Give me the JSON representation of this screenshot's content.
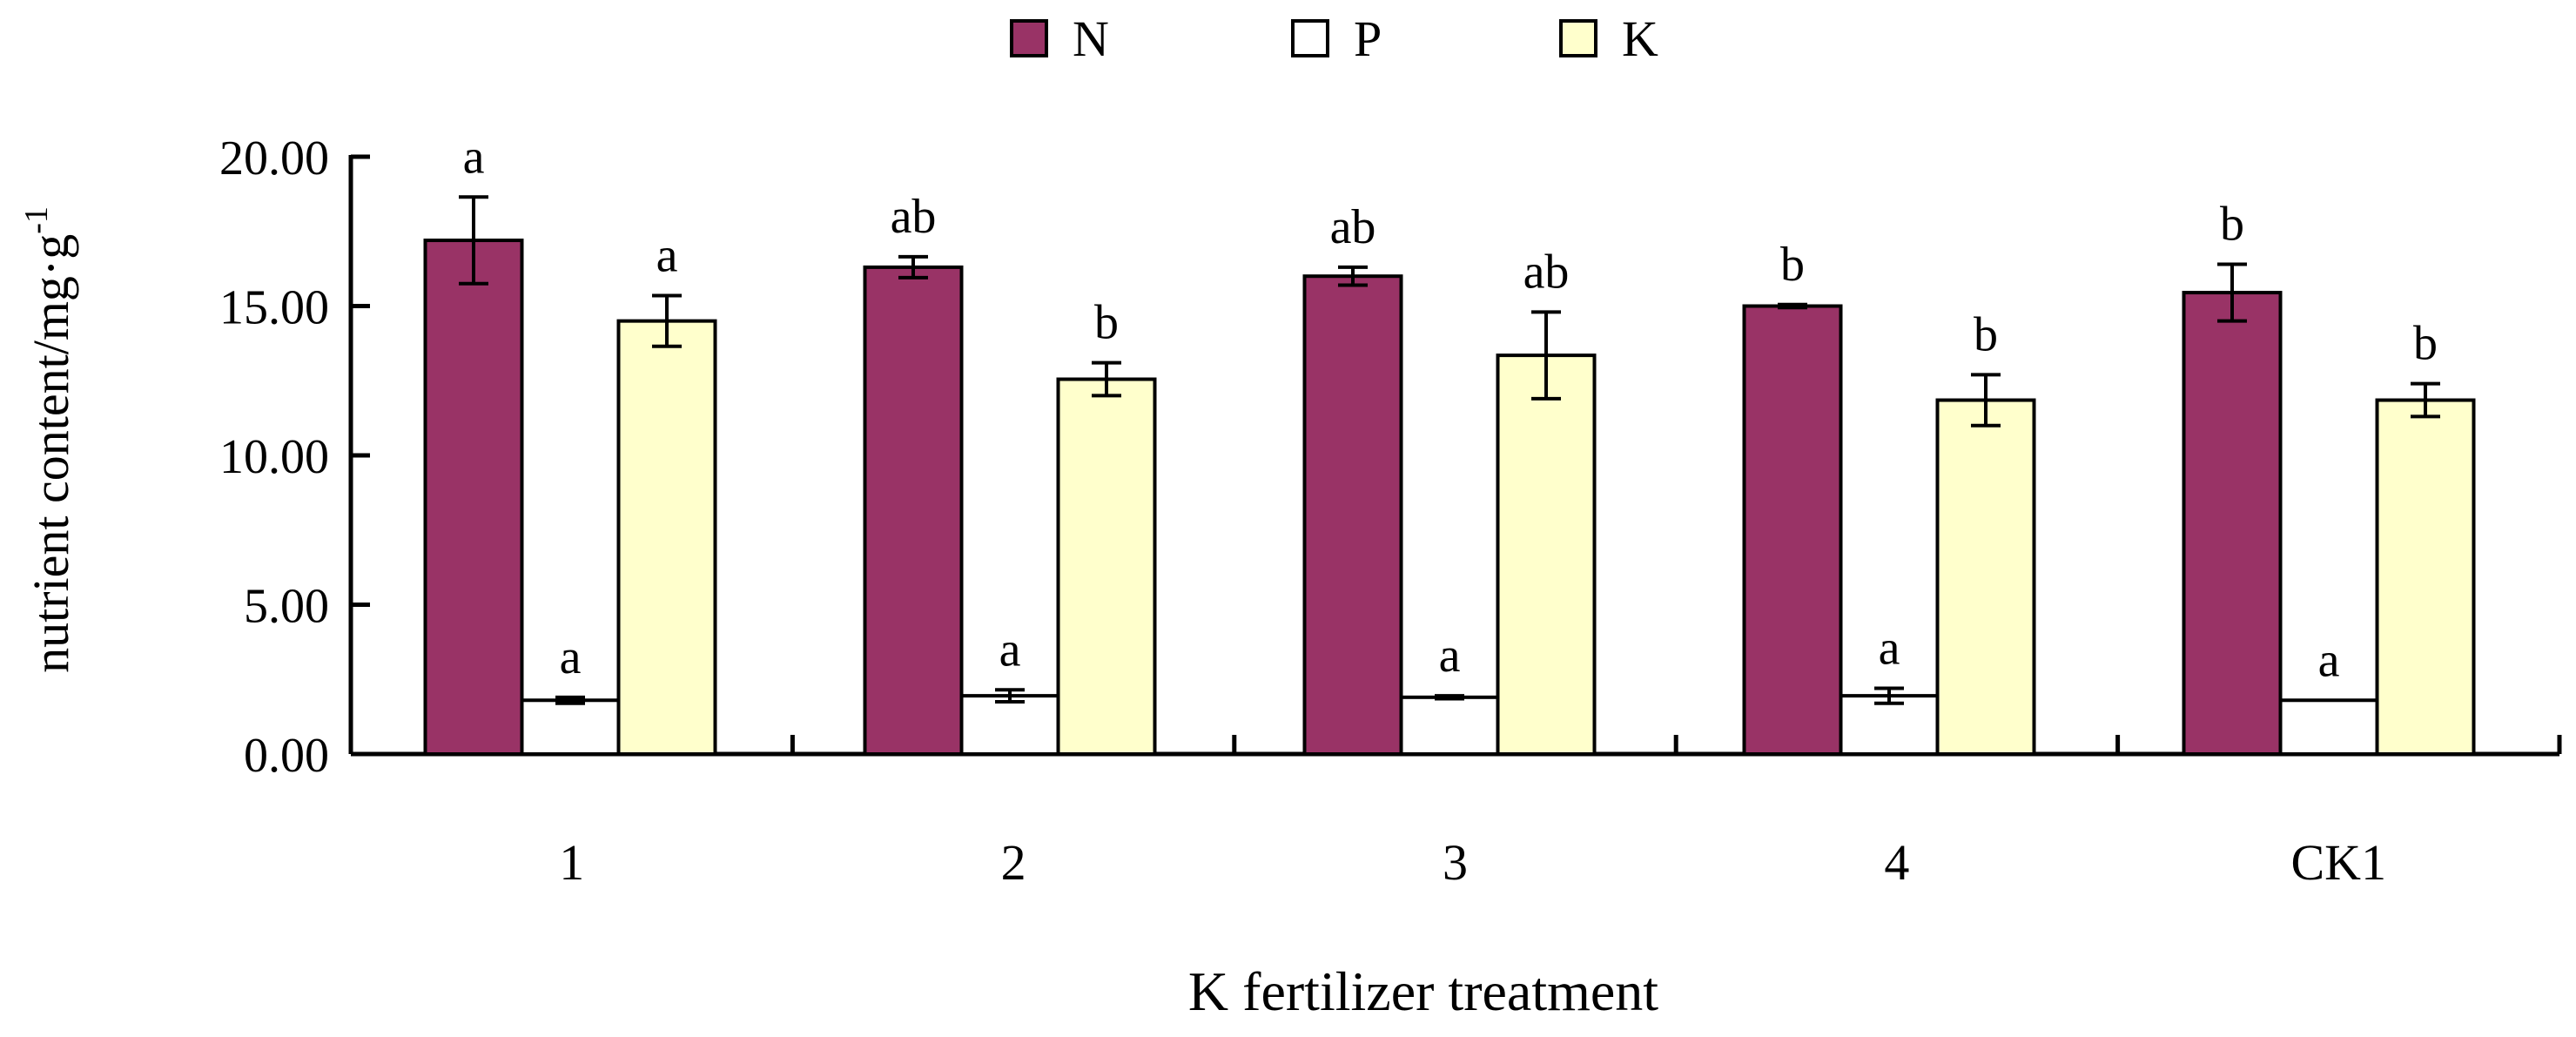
{
  "chart_data": {
    "type": "bar",
    "title": "",
    "xlabel": "K fertilizer treatment",
    "ylabel": "nutrient content/mg·g",
    "ylabel_sup": "-1",
    "ylim": [
      0,
      20
    ],
    "yticks": [
      "0.00",
      "5.00",
      "10.00",
      "15.00",
      "20.00"
    ],
    "categories": [
      "1",
      "2",
      "3",
      "4",
      "CK1"
    ],
    "legend_position": "top-center",
    "grid": false,
    "series": [
      {
        "name": "N",
        "color": "#993366",
        "values": [
          17.2,
          16.3,
          16.0,
          15.0,
          15.45
        ],
        "errors": [
          1.45,
          0.35,
          0.3,
          0.05,
          0.95
        ],
        "letters": [
          "a",
          "ab",
          "ab",
          "b",
          "b"
        ]
      },
      {
        "name": "P",
        "color": "#ffffff",
        "values": [
          1.8,
          1.95,
          1.9,
          1.95,
          1.8
        ],
        "errors": [
          0.1,
          0.2,
          0.05,
          0.25,
          0.0
        ],
        "letters": [
          "a",
          "a",
          "a",
          "a",
          "a"
        ]
      },
      {
        "name": "K",
        "color": "#ffffcc",
        "values": [
          14.5,
          12.55,
          13.35,
          11.85,
          11.85
        ],
        "errors": [
          0.85,
          0.55,
          1.45,
          0.85,
          0.55
        ],
        "letters": [
          "a",
          "b",
          "ab",
          "b",
          "b"
        ]
      }
    ]
  }
}
